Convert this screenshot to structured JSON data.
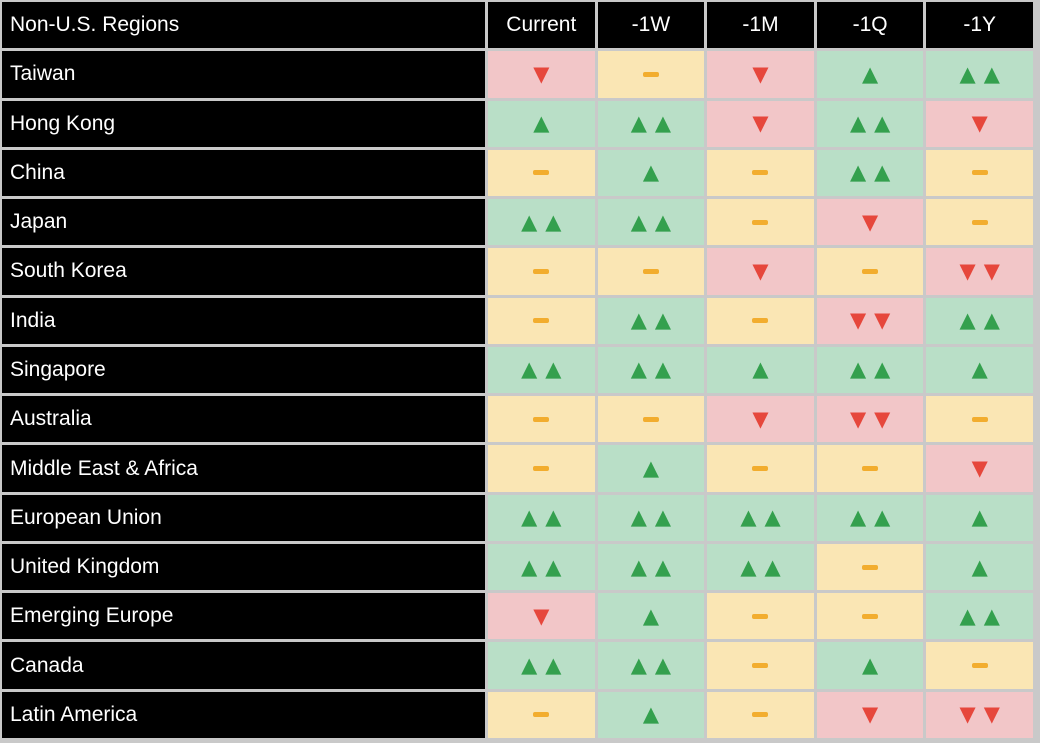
{
  "table": {
    "corner_label": "Non-U.S. Regions"
  },
  "chart_data": {
    "type": "heatmap",
    "title": "Non-U.S. Regions",
    "columns": [
      "Current",
      "-1W",
      "-1M",
      "-1Q",
      "-1Y"
    ],
    "rows": [
      "Taiwan",
      "Hong Kong",
      "China",
      "Japan",
      "South Korea",
      "India",
      "Singapore",
      "Australia",
      "Middle East & Africa",
      "European Union",
      "United Kingdom",
      "Emerging Europe",
      "Canada",
      "Latin America"
    ],
    "values": [
      [
        -1,
        0,
        -1,
        1,
        2
      ],
      [
        1,
        2,
        -1,
        2,
        -1
      ],
      [
        0,
        1,
        0,
        2,
        0
      ],
      [
        2,
        2,
        0,
        -1,
        0
      ],
      [
        0,
        0,
        -1,
        0,
        -2
      ],
      [
        0,
        2,
        0,
        -2,
        2
      ],
      [
        2,
        2,
        1,
        2,
        1
      ],
      [
        0,
        0,
        -1,
        -2,
        0
      ],
      [
        0,
        1,
        0,
        0,
        -1
      ],
      [
        2,
        2,
        2,
        2,
        1
      ],
      [
        2,
        2,
        2,
        0,
        1
      ],
      [
        -1,
        1,
        0,
        0,
        2
      ],
      [
        2,
        2,
        0,
        1,
        0
      ],
      [
        0,
        1,
        0,
        -1,
        -2
      ]
    ],
    "value_legend": {
      "2": "two green up arrows (strong positive)",
      "1": "one green up arrow (positive)",
      "0": "orange dash (neutral)",
      "-1": "one red down arrow (negative)",
      "-2": "two red down arrows (strong negative)"
    },
    "symbols": {
      "up": "▲",
      "down": "▼",
      "neutral": "-"
    },
    "layout": {
      "legend": "none",
      "grid": "on"
    },
    "colors": {
      "positive_bg": "#b9dfc7",
      "negative_bg": "#f2c6c8",
      "neutral_bg": "#fae6b4",
      "up_arrow": "#34a04e",
      "down_arrow": "#e6473c",
      "neutral_dash": "#f2ad2e",
      "header_bg": "#000000",
      "header_text": "#ffffff",
      "grid_line": "#c9c9c9"
    }
  }
}
